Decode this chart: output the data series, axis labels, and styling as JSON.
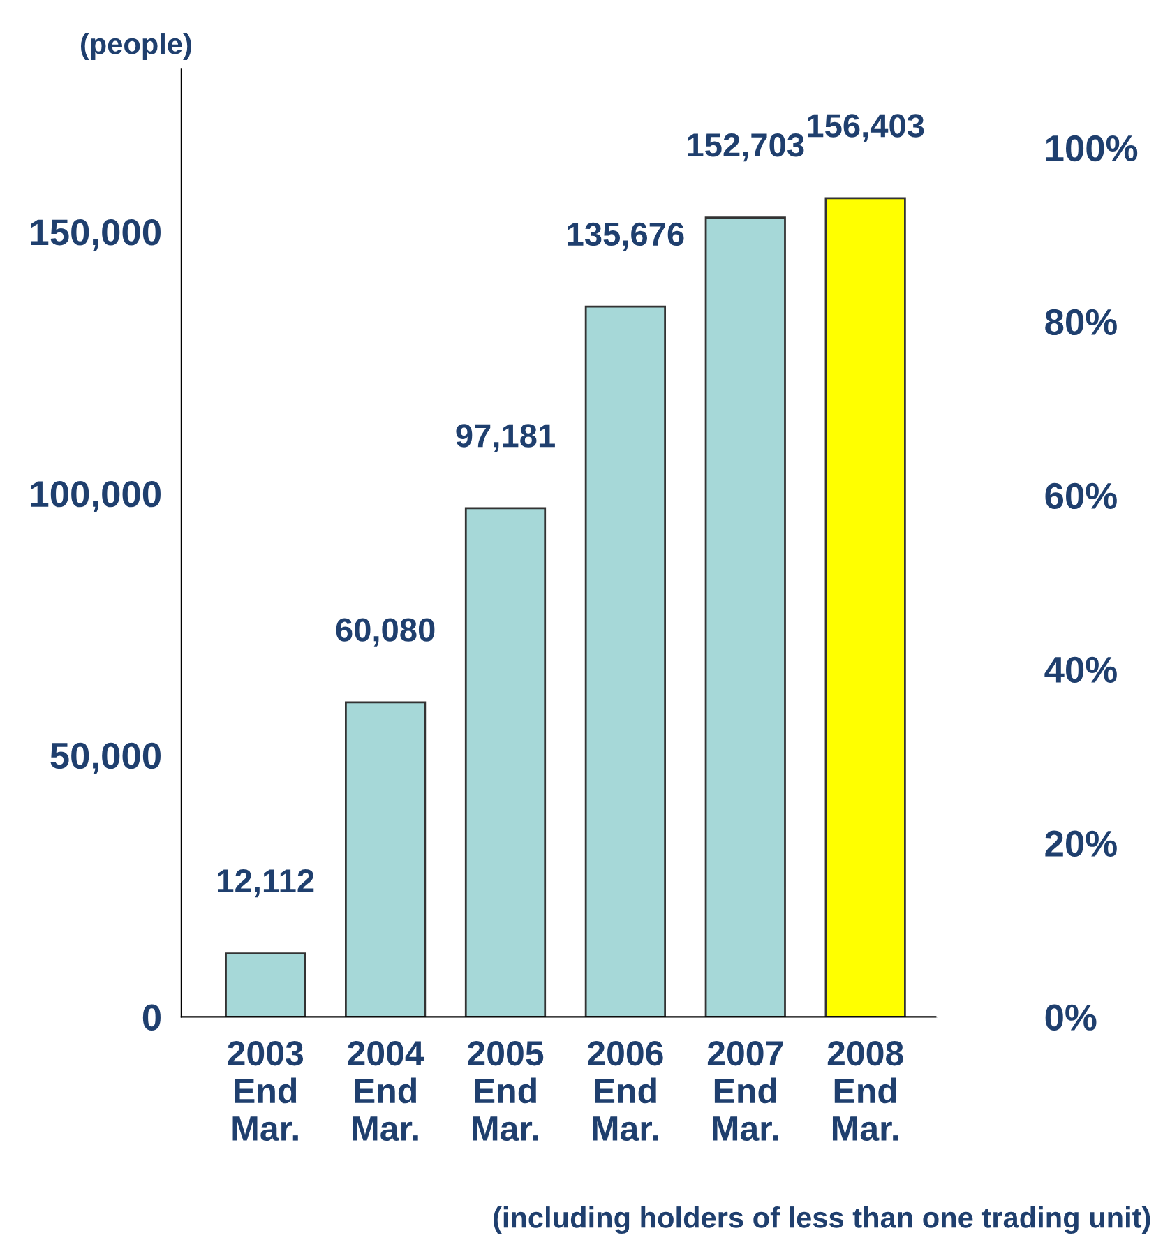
{
  "chart_data": {
    "type": "bar",
    "categories": [
      "2003\nEnd\nMar.",
      "2004\nEnd\nMar.",
      "2005\nEnd\nMar.",
      "2006\nEnd\nMar.",
      "2007\nEnd\nMar.",
      "2008\nEnd\nMar."
    ],
    "values": [
      12112,
      60080,
      97181,
      135676,
      152703,
      156403
    ],
    "value_labels": [
      "12,112",
      "60,080",
      "97,181",
      "135,676",
      "152,703",
      "156,403"
    ],
    "colors": [
      "#a6d8d8",
      "#a6d8d8",
      "#a6d8d8",
      "#a6d8d8",
      "#a6d8d8",
      "#ffff00"
    ],
    "ylabel": "(people)",
    "ylim": [
      0,
      181000
    ],
    "yticks": [
      0,
      {
        "value": 50000,
        "label": "50,000"
      },
      {
        "value": 100000,
        "label": "100,000"
      },
      {
        "value": 150000,
        "label": "150,000"
      }
    ],
    "y2lim": [
      0,
      109
    ],
    "y2ticks": [
      {
        "value": 0,
        "label": "0%"
      },
      {
        "value": 20,
        "label": "20%"
      },
      {
        "value": 40,
        "label": "40%"
      },
      {
        "value": 60,
        "label": "60%"
      },
      {
        "value": 80,
        "label": "80%"
      },
      {
        "value": 100,
        "label": "100%"
      }
    ],
    "annotations": [
      "(including holders of less than one trading unit)"
    ],
    "grid": false,
    "legend": false
  }
}
